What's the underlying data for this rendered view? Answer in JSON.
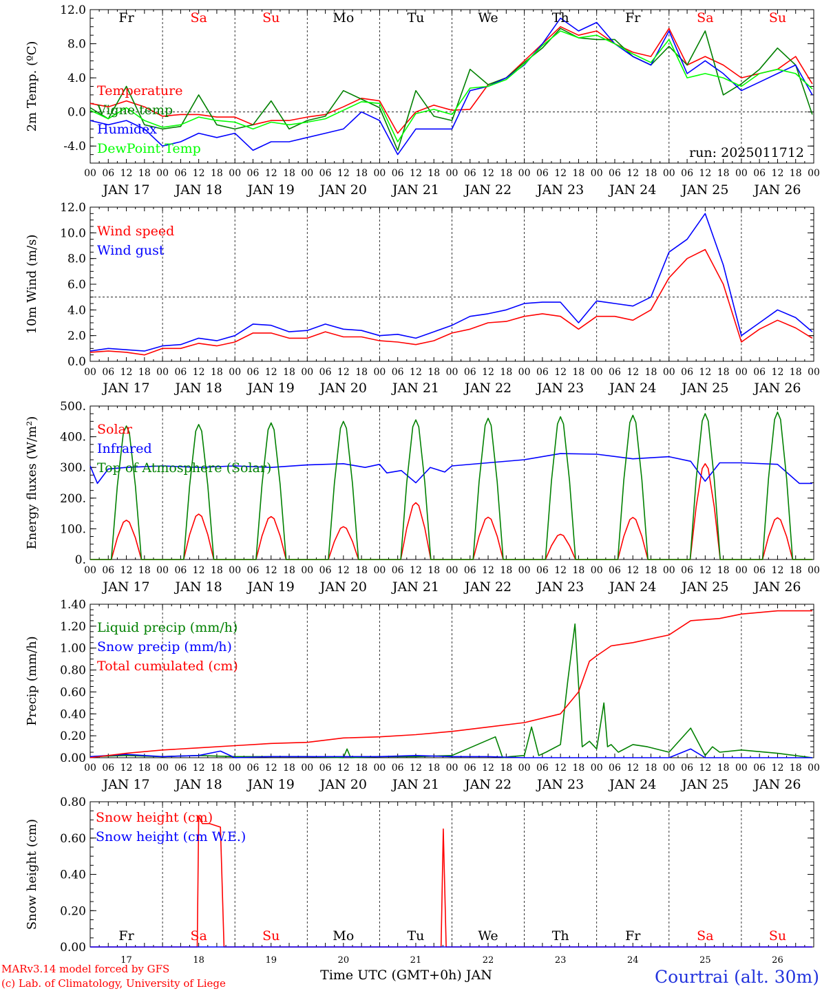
{
  "days": [
    "17",
    "18",
    "19",
    "20",
    "21",
    "22",
    "23",
    "24",
    "25",
    "26"
  ],
  "day_labels": [
    "JAN 17",
    "JAN 18",
    "JAN 19",
    "JAN 20",
    "JAN 21",
    "JAN 22",
    "JAN 23",
    "JAN 24",
    "JAN 25",
    "JAN 26"
  ],
  "weekdays": [
    {
      "label": "Fr",
      "weekend": false
    },
    {
      "label": "Sa",
      "weekend": true
    },
    {
      "label": "Su",
      "weekend": true
    },
    {
      "label": "Mo",
      "weekend": false
    },
    {
      "label": "Tu",
      "weekend": false
    },
    {
      "label": "We",
      "weekend": false
    },
    {
      "label": "Th",
      "weekend": false
    },
    {
      "label": "Fr",
      "weekend": false
    },
    {
      "label": "Sa",
      "weekend": true
    },
    {
      "label": "Su",
      "weekend": true
    }
  ],
  "hour_ticks": [
    "00",
    "06",
    "12",
    "18"
  ],
  "run_label": "run: 2025011712",
  "footer": {
    "model": "MARv3.14 model forced by GFS",
    "credit": "(c) Lab. of Climatology, University of Liege",
    "xlabel": "Time UTC (GMT+0h) JAN",
    "station": "Courtrai (alt. 30m)"
  },
  "colors": {
    "red": "#ff0000",
    "green": "#008000",
    "blue": "#0000ff",
    "lightgreen": "#00ff00",
    "weekend": "#ff0000"
  },
  "chart_data": [
    {
      "type": "line",
      "ylabel": "2m Temp. (ºC)",
      "ylim": [
        -6,
        12
      ],
      "yticks": [
        "-4.0",
        "0.0",
        "4.0",
        "8.0",
        "12.0"
      ],
      "ytick_values": [
        -4,
        0,
        4,
        8,
        12
      ],
      "ref_line": 0,
      "x_unit": "days since 2025-01-17 00 UTC",
      "series": [
        {
          "name": "Temperature",
          "color": "#ff0000",
          "x": [
            0,
            0.25,
            0.5,
            0.75,
            1,
            1.25,
            1.5,
            1.75,
            2,
            2.25,
            2.5,
            2.75,
            3,
            3.25,
            3.5,
            3.75,
            4,
            4.25,
            4.5,
            4.75,
            5,
            5.25,
            5.5,
            5.75,
            6,
            6.25,
            6.5,
            6.75,
            7,
            7.25,
            7.5,
            7.75,
            8,
            8.25,
            8.5,
            8.75,
            9,
            9.25,
            9.5,
            9.75,
            9.98
          ],
          "y": [
            1.0,
            0.6,
            1.3,
            0.6,
            -0.5,
            -0.3,
            -0.3,
            -0.6,
            -0.6,
            -1.5,
            -1.0,
            -1.0,
            -0.6,
            -0.3,
            0.6,
            1.6,
            1.3,
            -2.5,
            0.0,
            0.8,
            0.2,
            0.3,
            3.2,
            4.0,
            6.0,
            8.0,
            10.0,
            9.0,
            9.5,
            8.0,
            7.0,
            6.5,
            9.8,
            5.5,
            6.5,
            5.5,
            4.0,
            4.5,
            5.0,
            6.5,
            3.3
          ]
        },
        {
          "name": "Vigne temp",
          "color": "#008000",
          "x": [
            0,
            0.25,
            0.5,
            0.75,
            1,
            1.25,
            1.5,
            1.75,
            2,
            2.25,
            2.5,
            2.75,
            3,
            3.25,
            3.5,
            3.75,
            4,
            4.25,
            4.5,
            4.75,
            5,
            5.25,
            5.5,
            5.75,
            6,
            6.25,
            6.5,
            6.75,
            7,
            7.25,
            7.5,
            7.75,
            8,
            8.25,
            8.5,
            8.75,
            9,
            9.25,
            9.5,
            9.75,
            9.98
          ],
          "y": [
            0.5,
            -0.8,
            3.0,
            -1.5,
            -2.0,
            -1.7,
            2.0,
            -1.5,
            -2.0,
            -1.5,
            1.3,
            -2.0,
            -1.0,
            -0.5,
            2.5,
            1.5,
            0.5,
            -4.5,
            2.5,
            -0.5,
            -1.0,
            5.0,
            3.2,
            4.0,
            5.8,
            7.5,
            9.8,
            8.7,
            8.5,
            8.5,
            6.5,
            5.5,
            7.7,
            5.5,
            9.5,
            2.0,
            3.3,
            5.0,
            7.5,
            5.5,
            -0.3
          ]
        },
        {
          "name": "Humidex",
          "color": "#0000ff",
          "x": [
            0,
            0.25,
            0.5,
            0.75,
            1,
            1.25,
            1.5,
            1.75,
            2,
            2.25,
            2.5,
            2.75,
            3,
            3.25,
            3.5,
            3.75,
            4,
            4.25,
            4.5,
            4.75,
            5,
            5.25,
            5.5,
            5.75,
            6,
            6.25,
            6.5,
            6.75,
            7,
            7.25,
            7.5,
            7.75,
            8,
            8.25,
            8.5,
            8.75,
            9,
            9.25,
            9.5,
            9.75,
            9.98
          ],
          "y": [
            -1.0,
            -1.5,
            -1.0,
            -2.0,
            -4.0,
            -3.5,
            -2.5,
            -3.0,
            -2.5,
            -4.5,
            -3.5,
            -3.5,
            -3.0,
            -2.5,
            -2.0,
            0.0,
            -1.0,
            -5.0,
            -2.0,
            -2.0,
            -2.0,
            2.5,
            3.0,
            4.0,
            5.5,
            8.0,
            11.0,
            9.5,
            10.5,
            8.0,
            6.5,
            5.5,
            9.5,
            4.5,
            6.0,
            4.5,
            2.5,
            3.5,
            4.5,
            5.5,
            2.0
          ]
        },
        {
          "name": "DewPoint Temp",
          "color": "#00ff00",
          "x": [
            0,
            0.25,
            0.5,
            0.75,
            1,
            1.25,
            1.5,
            1.75,
            2,
            2.25,
            2.5,
            2.75,
            3,
            3.25,
            3.5,
            3.75,
            4,
            4.25,
            4.5,
            4.75,
            5,
            5.25,
            5.5,
            5.75,
            6,
            6.25,
            6.5,
            6.75,
            7,
            7.25,
            7.5,
            7.75,
            8,
            8.25,
            8.5,
            8.75,
            9,
            9.25,
            9.5,
            9.75,
            9.98
          ],
          "y": [
            0.2,
            -0.8,
            0.5,
            -1.0,
            -1.8,
            -1.5,
            -0.6,
            -1.0,
            -1.2,
            -2.0,
            -1.2,
            -1.5,
            -1.2,
            -0.8,
            0.2,
            1.2,
            1.0,
            -3.5,
            -0.2,
            0.3,
            -0.3,
            2.8,
            3.0,
            3.8,
            5.6,
            7.8,
            9.5,
            8.7,
            9.0,
            8.0,
            6.8,
            5.8,
            8.5,
            4.0,
            4.5,
            4.0,
            3.0,
            4.5,
            5.0,
            4.5,
            2.7
          ]
        }
      ]
    },
    {
      "type": "line",
      "ylabel": "10m Wind (m/s)",
      "ylim": [
        0,
        12
      ],
      "yticks": [
        "0.0",
        "2.0",
        "4.0",
        "6.0",
        "8.0",
        "10.0",
        "12.0"
      ],
      "ytick_values": [
        0,
        2,
        4,
        6,
        8,
        10,
        12
      ],
      "ref_line": 5,
      "x_unit": "days since 2025-01-17 00 UTC",
      "series": [
        {
          "name": "Wind speed",
          "color": "#ff0000",
          "x": [
            0,
            0.25,
            0.5,
            0.75,
            1,
            1.25,
            1.5,
            1.75,
            2,
            2.25,
            2.5,
            2.75,
            3,
            3.25,
            3.5,
            3.75,
            4,
            4.25,
            4.5,
            4.75,
            5,
            5.25,
            5.5,
            5.75,
            6,
            6.25,
            6.5,
            6.75,
            7,
            7.25,
            7.5,
            7.75,
            8,
            8.25,
            8.5,
            8.75,
            9,
            9.25,
            9.5,
            9.75,
            9.98
          ],
          "y": [
            0.7,
            0.8,
            0.7,
            0.5,
            1.0,
            1.0,
            1.4,
            1.2,
            1.5,
            2.2,
            2.2,
            1.8,
            1.8,
            2.3,
            1.9,
            1.9,
            1.6,
            1.5,
            1.3,
            1.6,
            2.2,
            2.5,
            3.0,
            3.1,
            3.5,
            3.7,
            3.5,
            2.5,
            3.5,
            3.5,
            3.2,
            4.0,
            6.5,
            8.0,
            8.7,
            6.0,
            1.5,
            2.5,
            3.2,
            2.6,
            1.8
          ]
        },
        {
          "name": "Wind gust",
          "color": "#0000ff",
          "x": [
            0,
            0.25,
            0.5,
            0.75,
            1,
            1.25,
            1.5,
            1.75,
            2,
            2.25,
            2.5,
            2.75,
            3,
            3.25,
            3.5,
            3.75,
            4,
            4.25,
            4.5,
            4.75,
            5,
            5.25,
            5.5,
            5.75,
            6,
            6.25,
            6.5,
            6.75,
            7,
            7.25,
            7.5,
            7.75,
            8,
            8.25,
            8.5,
            8.75,
            9,
            9.25,
            9.5,
            9.75,
            9.98
          ],
          "y": [
            0.8,
            1.0,
            0.9,
            0.8,
            1.2,
            1.3,
            1.8,
            1.6,
            2.0,
            2.9,
            2.8,
            2.3,
            2.4,
            2.9,
            2.5,
            2.4,
            2.0,
            2.1,
            1.8,
            2.3,
            2.8,
            3.5,
            3.7,
            4.0,
            4.5,
            4.6,
            4.6,
            3.0,
            4.7,
            4.5,
            4.3,
            5.0,
            8.5,
            9.5,
            11.5,
            7.5,
            2.0,
            3.0,
            4.0,
            3.4,
            2.3
          ]
        }
      ]
    },
    {
      "type": "line",
      "ylabel": "Energy fluxes (W/m²)",
      "ylim": [
        0,
        500
      ],
      "yticks": [
        "0.",
        "100.",
        "200.",
        "300.",
        "400.",
        "500."
      ],
      "ytick_values": [
        0,
        100,
        200,
        300,
        400,
        500
      ],
      "x_unit": "days since 2025-01-17 00 UTC",
      "series": [
        {
          "name": "Solar",
          "color": "#ff0000",
          "diurnal": true,
          "peaks": [
            128,
            148,
            140,
            107,
            185,
            138,
            82,
            137,
            312,
            136
          ]
        },
        {
          "name": "Infrared",
          "color": "#0000ff",
          "x": [
            0,
            0.1,
            0.25,
            0.5,
            1,
            1.5,
            2,
            2.5,
            3,
            3.5,
            3.8,
            4.0,
            4.1,
            4.3,
            4.5,
            4.7,
            4.9,
            5.0,
            5.5,
            6.0,
            6.5,
            7.0,
            7.5,
            8.0,
            8.3,
            8.5,
            8.7,
            9.0,
            9.5,
            9.8,
            9.98
          ],
          "y": [
            305,
            248,
            295,
            300,
            305,
            300,
            305,
            300,
            308,
            312,
            300,
            310,
            282,
            290,
            250,
            300,
            285,
            305,
            315,
            325,
            345,
            343,
            328,
            335,
            320,
            255,
            315,
            315,
            310,
            248,
            248
          ]
        },
        {
          "name": "Top of Atmosphere (Solar)",
          "color": "#008000",
          "diurnal": true,
          "peaks": [
            435,
            440,
            445,
            450,
            455,
            460,
            465,
            470,
            475,
            480
          ]
        }
      ]
    },
    {
      "type": "line",
      "ylabel": "Precip (mm/h)",
      "ylim": [
        0,
        1.4
      ],
      "yticks": [
        "0.00",
        "0.20",
        "0.40",
        "0.60",
        "0.80",
        "1.00",
        "1.20",
        "1.40"
      ],
      "ytick_values": [
        0,
        0.2,
        0.4,
        0.6,
        0.8,
        1.0,
        1.2,
        1.4
      ],
      "x_unit": "days since 2025-01-17 00 UTC",
      "series": [
        {
          "name": "Liquid precip (mm/h)",
          "color": "#008000",
          "x": [
            0,
            0.5,
            1,
            1.5,
            2,
            2.5,
            3,
            3.5,
            3.55,
            3.6,
            4,
            4.5,
            5,
            5.6,
            5.7,
            5.8,
            6,
            6.1,
            6.2,
            6.3,
            6.5,
            6.6,
            6.7,
            6.8,
            6.9,
            7.0,
            7.1,
            7.15,
            7.2,
            7.3,
            7.5,
            7.7,
            8.0,
            8.3,
            8.5,
            8.6,
            8.7,
            9.0,
            9.5,
            9.98
          ],
          "y": [
            0.01,
            0.02,
            0.01,
            0.02,
            0.01,
            0.01,
            0.01,
            0.0,
            0.08,
            0.0,
            0.01,
            0.01,
            0.02,
            0.19,
            0.0,
            0.01,
            0.02,
            0.28,
            0.02,
            0.05,
            0.12,
            0.7,
            1.22,
            0.1,
            0.15,
            0.08,
            0.5,
            0.1,
            0.12,
            0.05,
            0.12,
            0.1,
            0.05,
            0.27,
            0.02,
            0.1,
            0.05,
            0.07,
            0.04,
            0.0
          ]
        },
        {
          "name": "Snow precip (mm/h)",
          "color": "#0000ff",
          "x": [
            0,
            0.5,
            1,
            1.5,
            1.8,
            2,
            2.5,
            3,
            3.5,
            4,
            4.5,
            5,
            5.5,
            6,
            6.5,
            7,
            7.5,
            8,
            8.3,
            8.5,
            9,
            9.5,
            9.98
          ],
          "y": [
            0.01,
            0.03,
            0.01,
            0.02,
            0.06,
            0.0,
            0.01,
            0.01,
            0.01,
            0.01,
            0.02,
            0.01,
            0.01,
            0.0,
            0.0,
            0.0,
            0.0,
            0.0,
            0.08,
            0.0,
            0.0,
            0.0,
            0.0
          ]
        },
        {
          "name": "Total cumulated (cm)",
          "color": "#ff0000",
          "x": [
            0,
            0.5,
            1,
            1.5,
            2,
            2.5,
            3,
            3.5,
            4,
            4.5,
            5,
            5.5,
            6,
            6.5,
            6.75,
            6.9,
            7.0,
            7.2,
            7.5,
            8.0,
            8.3,
            8.7,
            9.0,
            9.5,
            9.98
          ],
          "y": [
            0.0,
            0.04,
            0.07,
            0.09,
            0.11,
            0.13,
            0.14,
            0.18,
            0.19,
            0.21,
            0.24,
            0.28,
            0.32,
            0.4,
            0.6,
            0.88,
            0.93,
            1.02,
            1.05,
            1.12,
            1.25,
            1.27,
            1.31,
            1.34,
            1.34
          ]
        }
      ]
    },
    {
      "type": "line",
      "ylabel": "Snow height (cm)",
      "ylim": [
        0,
        0.8
      ],
      "yticks": [
        "0.00",
        "0.20",
        "0.40",
        "0.60",
        "0.80"
      ],
      "ytick_values": [
        0,
        0.2,
        0.4,
        0.6,
        0.8
      ],
      "x_unit": "days since 2025-01-17 00 UTC",
      "series": [
        {
          "name": "Snow height (cm)",
          "color": "#ff0000",
          "x": [
            0,
            1.48,
            1.5,
            1.55,
            1.65,
            1.8,
            1.85,
            4.85,
            4.88,
            4.92,
            9.98
          ],
          "y": [
            0,
            0,
            0.72,
            0.68,
            0.68,
            0.66,
            0,
            0,
            0.65,
            0,
            0
          ]
        },
        {
          "name": "Snow height (cm W.E.)",
          "color": "#0000ff",
          "x": [
            0,
            9.98
          ],
          "y": [
            0,
            0
          ]
        }
      ]
    }
  ]
}
